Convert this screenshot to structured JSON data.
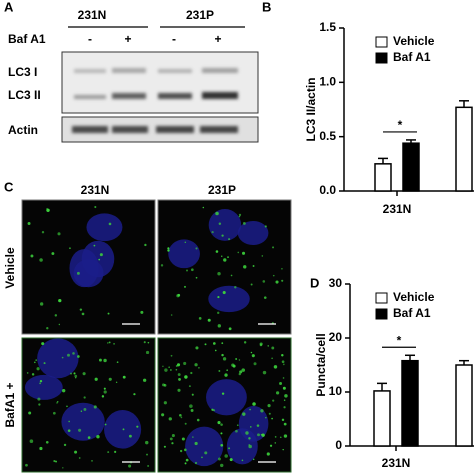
{
  "panel_a": {
    "label": "A",
    "groups": [
      "231N",
      "231P"
    ],
    "treatment": "Baf A1",
    "signs": [
      "-",
      "+",
      "-",
      "+"
    ],
    "bands": [
      "LC3 I",
      "LC3 II",
      "Actin"
    ]
  },
  "panel_c": {
    "label": "C",
    "columns": [
      "231N",
      "231P"
    ],
    "rows": [
      "Vehicle",
      "BafA1 +"
    ]
  },
  "chart_data": [
    {
      "type": "bar",
      "panel": "B",
      "y_label": "LC3 II/actin",
      "categories": [
        "231N",
        null
      ],
      "series": [
        {
          "name": "Vehicle",
          "color": "#ffffff",
          "values": [
            0.25,
            0.77
          ],
          "errors": [
            0.05,
            0.06
          ]
        },
        {
          "name": "Baf A1",
          "color": "#000000",
          "values": [
            0.44,
            null
          ],
          "errors": [
            0.03,
            null
          ]
        }
      ],
      "ylim": [
        0,
        1.5
      ],
      "yticks": [
        {
          "value": 0,
          "label": "0.0"
        },
        0.5,
        {
          "value": 1,
          "label": "1.0"
        },
        1.5
      ],
      "annotation": "*"
    },
    {
      "type": "bar",
      "panel": "D",
      "y_label": "Puncta/cell",
      "categories": [
        "231N",
        null
      ],
      "series": [
        {
          "name": "Vehicle",
          "color": "#ffffff",
          "values": [
            10.2,
            15
          ],
          "errors": [
            1.4,
            0.8
          ]
        },
        {
          "name": "Baf A1",
          "color": "#000000",
          "values": [
            15.8,
            null
          ],
          "errors": [
            1,
            null
          ]
        }
      ],
      "ylim": [
        0,
        30
      ],
      "yticks": [
        0,
        10,
        20,
        30
      ],
      "annotation": "*"
    }
  ]
}
